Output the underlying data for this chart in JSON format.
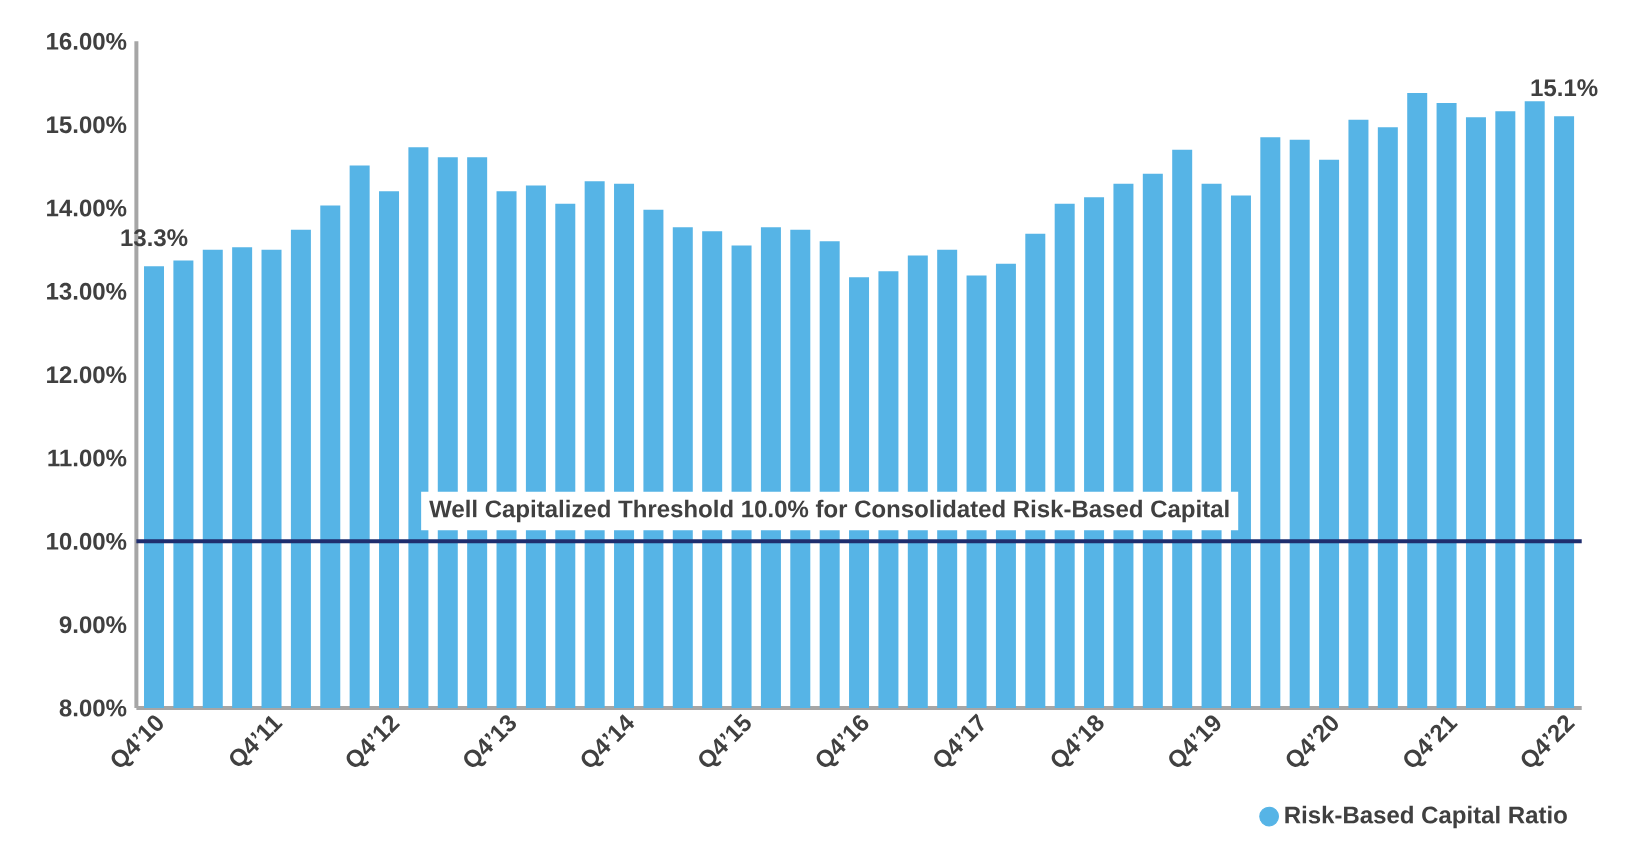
{
  "chart_data": {
    "type": "bar",
    "categories": [
      "Q4’10",
      null,
      null,
      null,
      "Q4’11",
      null,
      null,
      null,
      "Q4’12",
      null,
      null,
      null,
      "Q4’13",
      null,
      null,
      null,
      "Q4’14",
      null,
      null,
      null,
      "Q4’15",
      null,
      null,
      null,
      "Q4’16",
      null,
      null,
      null,
      "Q4’17",
      null,
      null,
      null,
      "Q4’18",
      null,
      null,
      null,
      "Q4’19",
      null,
      null,
      null,
      "Q4’20",
      null,
      null,
      null,
      "Q4’21",
      null,
      null,
      null,
      "Q4’22"
    ],
    "series": [
      {
        "name": "Risk-Based Capital Ratio",
        "color": "#56b4e6",
        "values": [
          13.3,
          13.37,
          13.5,
          13.53,
          13.5,
          13.74,
          14.03,
          14.51,
          14.2,
          14.73,
          14.61,
          14.61,
          14.2,
          14.27,
          14.05,
          14.32,
          14.29,
          13.98,
          13.77,
          13.72,
          13.55,
          13.77,
          13.74,
          13.6,
          13.17,
          13.24,
          13.43,
          13.5,
          13.19,
          13.33,
          13.69,
          14.05,
          14.13,
          14.29,
          14.41,
          14.7,
          14.29,
          14.15,
          14.85,
          14.82,
          14.58,
          15.06,
          14.97,
          15.38,
          15.26,
          15.09,
          15.16,
          15.28,
          15.1
        ],
        "value_labels": [
          "13.3%",
          null,
          null,
          null,
          null,
          null,
          null,
          null,
          null,
          null,
          null,
          null,
          null,
          null,
          null,
          null,
          null,
          null,
          null,
          null,
          null,
          null,
          null,
          null,
          null,
          null,
          null,
          null,
          null,
          null,
          null,
          null,
          null,
          null,
          null,
          null,
          null,
          null,
          null,
          null,
          null,
          null,
          null,
          null,
          null,
          null,
          null,
          null,
          "15.1%"
        ]
      }
    ],
    "ylim": [
      8,
      16
    ],
    "yticks": [
      {
        "value": 8,
        "label": "8.00%"
      },
      {
        "value": 9,
        "label": "9.00%"
      },
      {
        "value": 10,
        "label": "10.00%"
      },
      {
        "value": 11,
        "label": "11.00%"
      },
      {
        "value": 12,
        "label": "12.00%"
      },
      {
        "value": 13,
        "label": "13.00%"
      },
      {
        "value": 14,
        "label": "14.00%"
      },
      {
        "value": 15,
        "label": "15.00%"
      },
      {
        "value": 16,
        "label": "16.00%"
      }
    ],
    "ref_lines": [
      {
        "axis": "y",
        "value": 10,
        "label": "Well Capitalized Threshold 10.0% for Consolidated Risk-Based Capital",
        "color": "#1f2e6e"
      }
    ],
    "legend": "bottom right"
  }
}
